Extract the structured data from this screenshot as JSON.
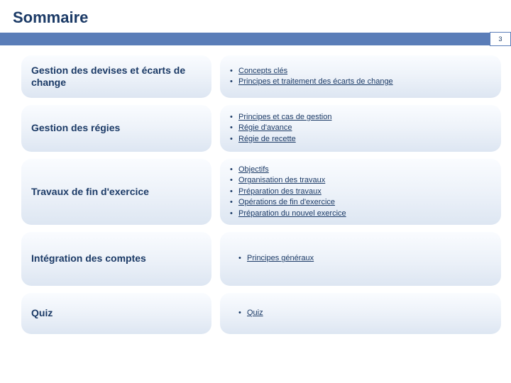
{
  "title": "Sommaire",
  "page_number": "3",
  "sections": [
    {
      "heading": "Gestion des devises et écarts de change",
      "items": [
        "Concepts clés",
        "Principes et traitement des écarts de change"
      ]
    },
    {
      "heading": "Gestion des régies",
      "items": [
        "Principes et cas de gestion",
        "Régie d'avance",
        "Régie de recette"
      ]
    },
    {
      "heading": "Travaux de fin d'exercice",
      "items": [
        "Objectifs",
        "Organisation des travaux",
        "Préparation des travaux",
        "Opérations de fin d'exercice",
        "Préparation du nouvel exercice"
      ]
    },
    {
      "heading": "Intégration des comptes",
      "items": [
        "Principes généraux"
      ]
    },
    {
      "heading": "Quiz",
      "items": [
        "Quiz"
      ]
    }
  ],
  "colors": {
    "heading_text": "#1b3a66",
    "bar": "#5a7db8",
    "pill_top": "#fafcff",
    "pill_mid": "#edf2f9",
    "pill_bot": "#dde6f2",
    "link": "#1b3a66"
  }
}
